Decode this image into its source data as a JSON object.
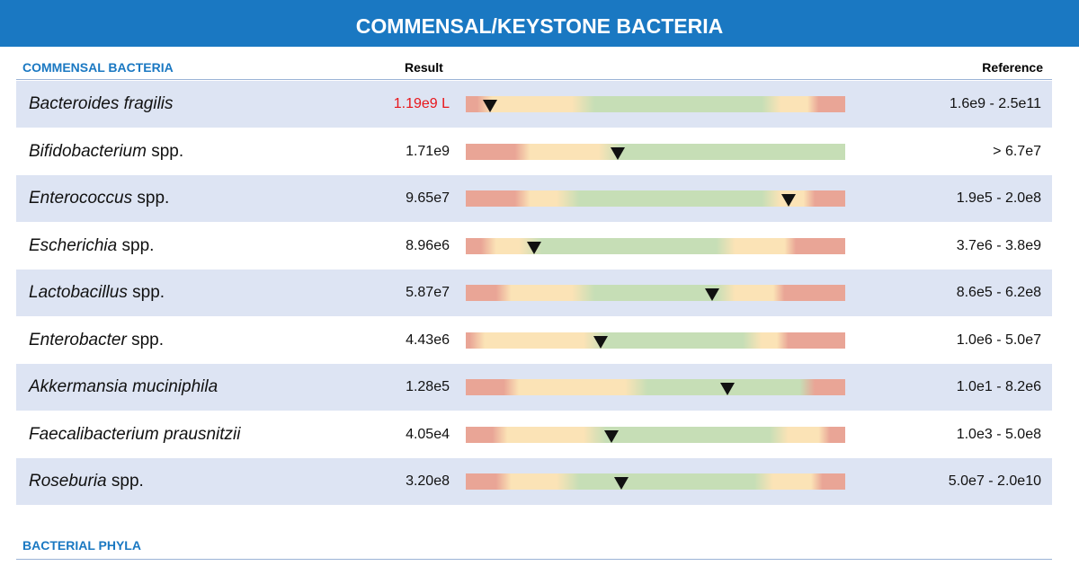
{
  "header": {
    "title": "COMMENSAL/KEYSTONE BACTERIA"
  },
  "section": {
    "title": "COMMENSAL BACTERIA",
    "result_header": "Result",
    "reference_header": "Reference",
    "rows": [
      {
        "name": "Bacteroides fragilis",
        "result": "1.19e9 L",
        "result_color": "#e8161b",
        "reference": "1.6e9 - 2.5e11"
      },
      {
        "name": "Bifidobacterium",
        "qualifier": "spp.",
        "result": "1.71e9",
        "reference": "> 6.7e7"
      },
      {
        "name": "Enterococcus",
        "qualifier": "spp.",
        "result": "9.65e7",
        "reference": "1.9e5 - 2.0e8"
      },
      {
        "name": "Escherichia",
        "qualifier": "spp.",
        "result": "8.96e6",
        "reference": "3.7e6 - 3.8e9"
      },
      {
        "name": "Lactobacillus",
        "qualifier": "spp.",
        "result": "5.87e7",
        "reference": "8.6e5 - 6.2e8"
      },
      {
        "name": "Enterobacter",
        "qualifier": "spp.",
        "result": "4.43e6",
        "reference": "1.0e6 - 5.0e7"
      },
      {
        "name": "Akkermansia muciniphila",
        "result": "1.28e5",
        "reference": "1.0e1 - 8.2e6"
      },
      {
        "name": "Faecalibacterium prausnitzii",
        "result": "4.05e4",
        "reference": "1.0e3 - 5.0e8"
      },
      {
        "name": "Roseburia",
        "qualifier": "spp.",
        "result": "3.20e8",
        "reference": "5.0e7 - 2.0e10"
      }
    ]
  },
  "next_section": {
    "title": "BACTERIAL PHYLA"
  }
}
